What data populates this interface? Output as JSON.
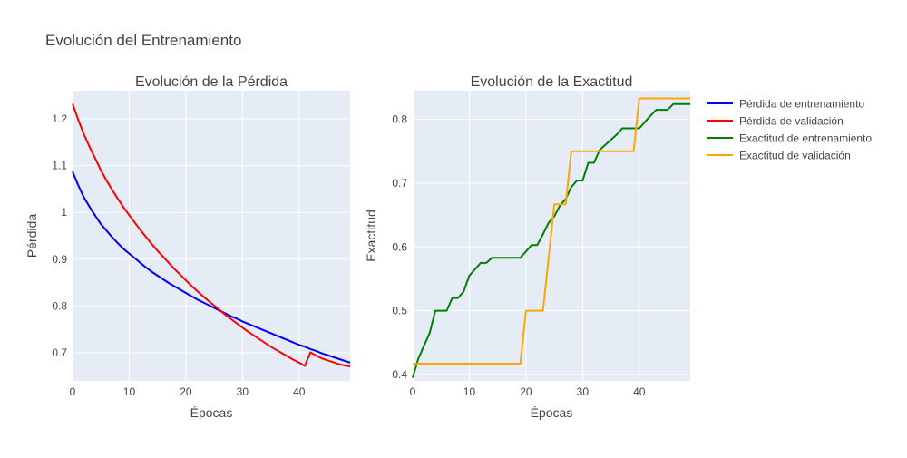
{
  "figure": {
    "title": "Evolución del Entrenamiento"
  },
  "legend": {
    "placement": "right",
    "items": [
      {
        "label": "Pérdida de entrenamiento",
        "color": "#0000ff"
      },
      {
        "label": "Pérdida de validación",
        "color": "#ff0000"
      },
      {
        "label": "Exactitud de entrenamiento",
        "color": "#008000"
      },
      {
        "label": "Exactitud de validación",
        "color": "#ffa500"
      }
    ]
  },
  "chart_data": [
    {
      "type": "line",
      "title": "Evolución de la Pérdida",
      "xlabel": "Épocas",
      "ylabel": "Pérdida",
      "xlim": [
        0,
        49
      ],
      "ylim": [
        0.64,
        1.26
      ],
      "xticks": [
        0,
        10,
        20,
        30,
        40
      ],
      "yticks": [
        0.7,
        0.8,
        0.9,
        1,
        1.1,
        1.2
      ],
      "ytick_labels": [
        "0.7",
        "0.8",
        "0.9",
        "1",
        "1.1",
        "1.2"
      ],
      "grid": true,
      "background": "#e5ecf6",
      "series": [
        {
          "name": "Pérdida de entrenamiento",
          "color": "#0000ff",
          "x": [
            0,
            1,
            2,
            3,
            4,
            5,
            6,
            7,
            8,
            9,
            10,
            11,
            12,
            13,
            14,
            15,
            16,
            17,
            18,
            19,
            20,
            21,
            22,
            23,
            24,
            25,
            26,
            27,
            28,
            29,
            30,
            31,
            32,
            33,
            34,
            35,
            36,
            37,
            38,
            39,
            40,
            41,
            42,
            43,
            44,
            45,
            46,
            47,
            48,
            49
          ],
          "y": [
            1.087,
            1.058,
            1.032,
            1.012,
            0.993,
            0.975,
            0.961,
            0.947,
            0.934,
            0.922,
            0.912,
            0.902,
            0.892,
            0.882,
            0.873,
            0.865,
            0.857,
            0.849,
            0.842,
            0.835,
            0.828,
            0.821,
            0.814,
            0.808,
            0.802,
            0.796,
            0.79,
            0.784,
            0.778,
            0.773,
            0.767,
            0.762,
            0.757,
            0.752,
            0.747,
            0.742,
            0.737,
            0.732,
            0.727,
            0.722,
            0.717,
            0.713,
            0.708,
            0.704,
            0.699,
            0.695,
            0.691,
            0.687,
            0.683,
            0.679
          ]
        },
        {
          "name": "Pérdida de validación",
          "color": "#ff0000",
          "x": [
            0,
            1,
            2,
            3,
            4,
            5,
            6,
            7,
            8,
            9,
            10,
            11,
            12,
            13,
            14,
            15,
            16,
            17,
            18,
            19,
            20,
            21,
            22,
            23,
            24,
            25,
            26,
            27,
            28,
            29,
            30,
            31,
            32,
            33,
            34,
            35,
            36,
            37,
            38,
            39,
            40,
            41,
            42,
            43,
            44,
            45,
            46,
            47,
            48,
            49
          ],
          "y": [
            1.232,
            1.198,
            1.167,
            1.14,
            1.115,
            1.09,
            1.068,
            1.048,
            1.029,
            1.011,
            0.994,
            0.978,
            0.962,
            0.947,
            0.932,
            0.918,
            0.905,
            0.892,
            0.879,
            0.867,
            0.855,
            0.843,
            0.832,
            0.821,
            0.811,
            0.801,
            0.791,
            0.781,
            0.772,
            0.763,
            0.754,
            0.745,
            0.737,
            0.729,
            0.721,
            0.713,
            0.706,
            0.699,
            0.692,
            0.685,
            0.679,
            0.672,
            0.701,
            0.694,
            0.688,
            0.684,
            0.68,
            0.676,
            0.673,
            0.671
          ]
        }
      ]
    },
    {
      "type": "line",
      "title": "Evolución de la Exactitud",
      "xlabel": "Épocas",
      "ylabel": "Exactitud",
      "xlim": [
        0,
        49
      ],
      "ylim": [
        0.39,
        0.845
      ],
      "xticks": [
        0,
        10,
        20,
        30,
        40
      ],
      "yticks": [
        0.4,
        0.5,
        0.6,
        0.7,
        0.8
      ],
      "ytick_labels": [
        "0.4",
        "0.5",
        "0.6",
        "0.7",
        "0.8"
      ],
      "grid": true,
      "background": "#e5ecf6",
      "series": [
        {
          "name": "Exactitud de entrenamiento",
          "color": "#008000",
          "x": [
            0,
            1,
            2,
            3,
            4,
            5,
            6,
            7,
            8,
            9,
            10,
            11,
            12,
            13,
            14,
            15,
            16,
            17,
            18,
            19,
            20,
            21,
            22,
            23,
            24,
            25,
            26,
            27,
            28,
            29,
            30,
            31,
            32,
            33,
            34,
            35,
            36,
            37,
            38,
            39,
            40,
            41,
            42,
            43,
            44,
            45,
            46,
            47,
            48,
            49
          ],
          "y": [
            0.395,
            0.425,
            0.445,
            0.465,
            0.5,
            0.5,
            0.5,
            0.52,
            0.52,
            0.53,
            0.555,
            0.565,
            0.575,
            0.575,
            0.583,
            0.583,
            0.583,
            0.583,
            0.583,
            0.583,
            0.593,
            0.603,
            0.603,
            0.62,
            0.638,
            0.648,
            0.665,
            0.675,
            0.694,
            0.704,
            0.704,
            0.732,
            0.732,
            0.752,
            0.76,
            0.768,
            0.776,
            0.786,
            0.786,
            0.786,
            0.786,
            0.796,
            0.806,
            0.815,
            0.815,
            0.815,
            0.824,
            0.824,
            0.824,
            0.824
          ]
        },
        {
          "name": "Exactitud de validación",
          "color": "#ffa500",
          "x": [
            0,
            1,
            2,
            3,
            4,
            5,
            6,
            7,
            8,
            9,
            10,
            11,
            12,
            13,
            14,
            15,
            16,
            17,
            18,
            19,
            20,
            21,
            22,
            23,
            24,
            25,
            26,
            27,
            28,
            29,
            30,
            31,
            32,
            33,
            34,
            35,
            36,
            37,
            38,
            39,
            40,
            41,
            42,
            43,
            44,
            45,
            46,
            47,
            48,
            49
          ],
          "y": [
            0.417,
            0.417,
            0.417,
            0.417,
            0.417,
            0.417,
            0.417,
            0.417,
            0.417,
            0.417,
            0.417,
            0.417,
            0.417,
            0.417,
            0.417,
            0.417,
            0.417,
            0.417,
            0.417,
            0.417,
            0.5,
            0.5,
            0.5,
            0.5,
            0.583,
            0.667,
            0.667,
            0.667,
            0.75,
            0.75,
            0.75,
            0.75,
            0.75,
            0.75,
            0.75,
            0.75,
            0.75,
            0.75,
            0.75,
            0.75,
            0.833,
            0.833,
            0.833,
            0.833,
            0.833,
            0.833,
            0.833,
            0.833,
            0.833,
            0.833
          ]
        }
      ]
    }
  ]
}
